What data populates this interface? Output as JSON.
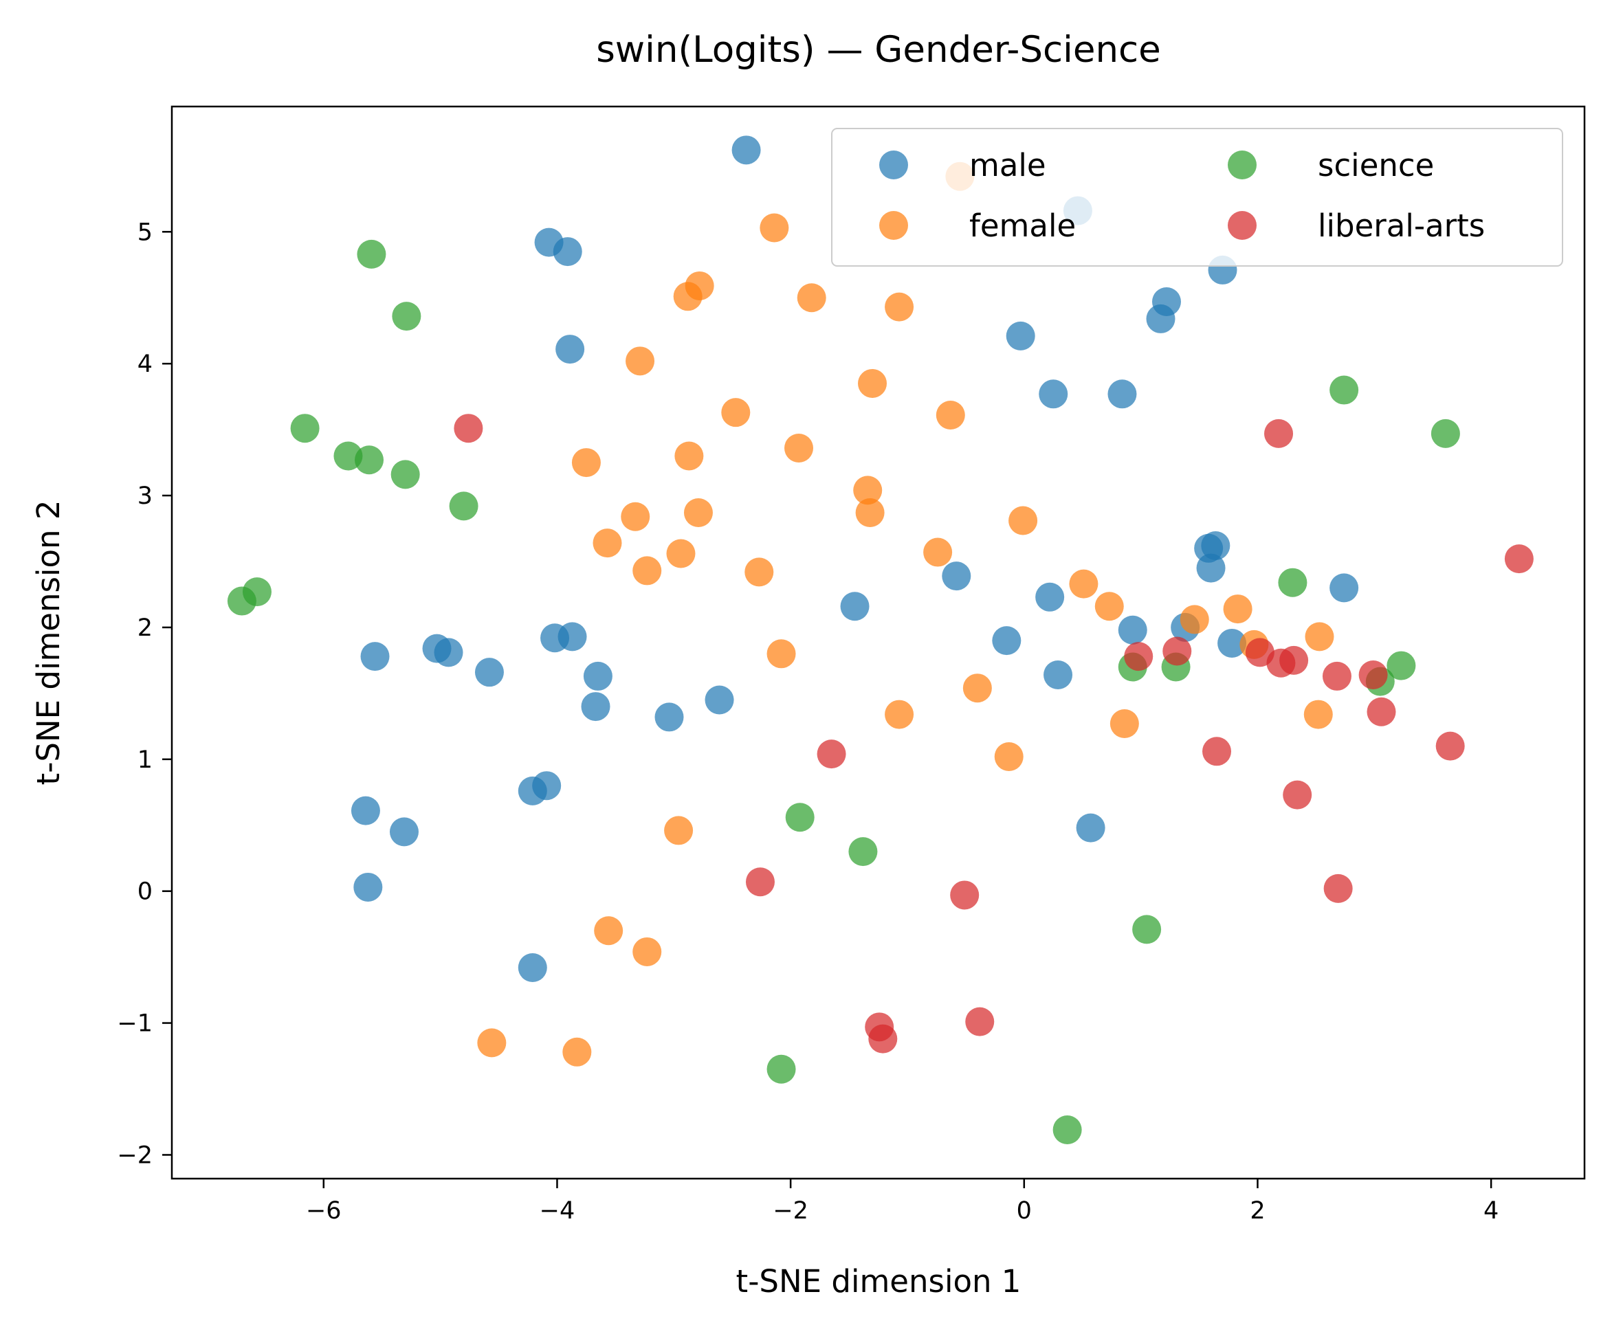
{
  "chart_data": {
    "type": "scatter",
    "title": "swin(Logits) — Gender-Science",
    "xlabel": "t-SNE dimension 1",
    "ylabel": "t-SNE dimension 2",
    "xlim": [
      -7.3,
      4.8
    ],
    "ylim": [
      -2.18,
      5.95
    ],
    "xticks": [
      -6,
      -4,
      -2,
      0,
      2,
      4
    ],
    "xtick_labels": [
      "−6",
      "−4",
      "−2",
      "0",
      "2",
      "4"
    ],
    "yticks": [
      -2,
      -1,
      0,
      1,
      2,
      3,
      4,
      5
    ],
    "ytick_labels": [
      "−2",
      "−1",
      "0",
      "1",
      "2",
      "3",
      "4",
      "5"
    ],
    "grid": false,
    "legend": {
      "placement": "top-right",
      "columns": 2
    },
    "series": [
      {
        "name": "male",
        "color": "#1f77b4",
        "points": [
          [
            -2.38,
            5.62
          ],
          [
            0.46,
            5.16
          ],
          [
            -4.07,
            4.92
          ],
          [
            -3.91,
            4.85
          ],
          [
            1.7,
            4.71
          ],
          [
            1.22,
            4.47
          ],
          [
            1.17,
            4.34
          ],
          [
            -3.89,
            4.11
          ],
          [
            -0.03,
            4.21
          ],
          [
            0.25,
            3.77
          ],
          [
            0.84,
            3.77
          ],
          [
            1.58,
            2.6
          ],
          [
            1.64,
            2.62
          ],
          [
            1.6,
            2.45
          ],
          [
            2.74,
            2.3
          ],
          [
            -0.58,
            2.39
          ],
          [
            0.22,
            2.23
          ],
          [
            -1.45,
            2.16
          ],
          [
            0.93,
            1.98
          ],
          [
            1.38,
            2.0
          ],
          [
            1.78,
            1.88
          ],
          [
            -0.15,
            1.9
          ],
          [
            0.29,
            1.64
          ],
          [
            -5.56,
            1.78
          ],
          [
            -5.03,
            1.84
          ],
          [
            -4.93,
            1.81
          ],
          [
            -4.58,
            1.66
          ],
          [
            -4.02,
            1.92
          ],
          [
            -3.87,
            1.93
          ],
          [
            -3.65,
            1.63
          ],
          [
            -3.67,
            1.4
          ],
          [
            -3.04,
            1.32
          ],
          [
            -2.61,
            1.45
          ],
          [
            -5.64,
            0.61
          ],
          [
            -5.31,
            0.45
          ],
          [
            -4.21,
            0.76
          ],
          [
            -4.09,
            0.8
          ],
          [
            0.57,
            0.48
          ],
          [
            -5.62,
            0.03
          ],
          [
            -4.21,
            -0.58
          ]
        ]
      },
      {
        "name": "female",
        "color": "#ff7f0e",
        "points": [
          [
            -0.55,
            5.42
          ],
          [
            -2.14,
            5.03
          ],
          [
            -2.78,
            4.59
          ],
          [
            -2.88,
            4.51
          ],
          [
            -1.82,
            4.5
          ],
          [
            -1.07,
            4.43
          ],
          [
            -3.29,
            4.02
          ],
          [
            -1.3,
            3.85
          ],
          [
            -2.47,
            3.63
          ],
          [
            -0.63,
            3.61
          ],
          [
            -1.93,
            3.36
          ],
          [
            -3.75,
            3.25
          ],
          [
            -2.87,
            3.3
          ],
          [
            -1.34,
            3.04
          ],
          [
            -1.32,
            2.87
          ],
          [
            -3.33,
            2.84
          ],
          [
            -2.79,
            2.87
          ],
          [
            -0.01,
            2.81
          ],
          [
            -3.57,
            2.64
          ],
          [
            -2.94,
            2.56
          ],
          [
            -0.74,
            2.57
          ],
          [
            -3.23,
            2.43
          ],
          [
            -2.27,
            2.42
          ],
          [
            0.51,
            2.33
          ],
          [
            0.73,
            2.16
          ],
          [
            1.46,
            2.06
          ],
          [
            1.83,
            2.14
          ],
          [
            1.97,
            1.87
          ],
          [
            2.53,
            1.93
          ],
          [
            -2.08,
            1.8
          ],
          [
            -0.4,
            1.54
          ],
          [
            -1.07,
            1.34
          ],
          [
            2.52,
            1.34
          ],
          [
            0.86,
            1.27
          ],
          [
            -0.13,
            1.02
          ],
          [
            -2.96,
            0.46
          ],
          [
            -3.56,
            -0.3
          ],
          [
            -3.23,
            -0.46
          ],
          [
            -4.56,
            -1.15
          ],
          [
            -3.83,
            -1.22
          ]
        ]
      },
      {
        "name": "science",
        "color": "#2ca02c",
        "points": [
          [
            -5.59,
            4.83
          ],
          [
            -5.29,
            4.36
          ],
          [
            -6.16,
            3.51
          ],
          [
            -5.79,
            3.3
          ],
          [
            -5.61,
            3.27
          ],
          [
            -5.3,
            3.16
          ],
          [
            -4.8,
            2.92
          ],
          [
            -6.7,
            2.2
          ],
          [
            -6.57,
            2.27
          ],
          [
            2.74,
            3.8
          ],
          [
            3.61,
            3.47
          ],
          [
            2.3,
            2.34
          ],
          [
            0.93,
            1.7
          ],
          [
            1.3,
            1.7
          ],
          [
            3.05,
            1.59
          ],
          [
            3.23,
            1.71
          ],
          [
            -1.92,
            0.56
          ],
          [
            -1.38,
            0.3
          ],
          [
            1.05,
            -0.29
          ],
          [
            -2.08,
            -1.35
          ],
          [
            0.37,
            -1.81
          ]
        ]
      },
      {
        "name": "liberal-arts",
        "color": "#d62728",
        "points": [
          [
            -4.76,
            3.51
          ],
          [
            2.18,
            3.47
          ],
          [
            4.24,
            2.52
          ],
          [
            0.98,
            1.78
          ],
          [
            1.31,
            1.82
          ],
          [
            2.02,
            1.81
          ],
          [
            2.2,
            1.73
          ],
          [
            2.31,
            1.75
          ],
          [
            2.68,
            1.63
          ],
          [
            2.99,
            1.64
          ],
          [
            3.06,
            1.36
          ],
          [
            3.65,
            1.1
          ],
          [
            -1.65,
            1.04
          ],
          [
            1.65,
            1.06
          ],
          [
            2.34,
            0.73
          ],
          [
            -2.26,
            0.07
          ],
          [
            -0.51,
            -0.03
          ],
          [
            2.69,
            0.02
          ],
          [
            -1.24,
            -1.03
          ],
          [
            -1.21,
            -1.12
          ],
          [
            -0.38,
            -0.99
          ]
        ]
      }
    ]
  }
}
